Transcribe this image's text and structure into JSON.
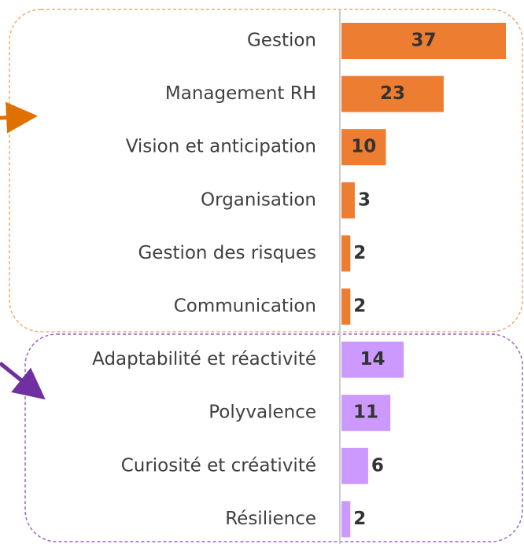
{
  "chart_data": {
    "type": "hbar",
    "categories": [
      "Gestion",
      "Management RH",
      "Vision et anticipation",
      "Organisation",
      "Gestion des risques",
      "Communication",
      "Adaptabilité et réactivité",
      "Polyvalence",
      "Curiosité et créativité",
      "Résilience"
    ],
    "values": [
      37,
      23,
      10,
      3,
      2,
      2,
      14,
      11,
      6,
      2
    ],
    "colors": [
      "#ed7d31",
      "#ed7d31",
      "#ed7d31",
      "#ed7d31",
      "#ed7d31",
      "#ed7d31",
      "#cc99ff",
      "#cc99ff",
      "#cc99ff",
      "#cc99ff"
    ]
  }
}
